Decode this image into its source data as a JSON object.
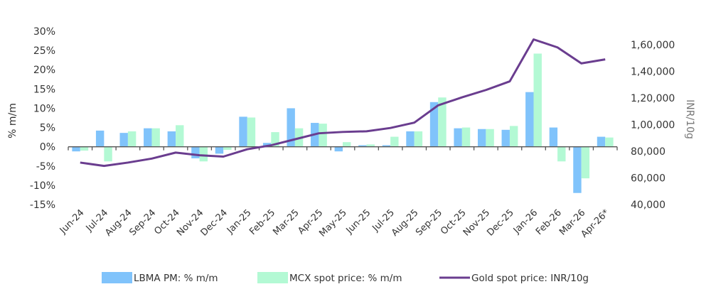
{
  "chart_data": {
    "type": "bar",
    "title": "",
    "categories": [
      "Jun-24",
      "Jul-24",
      "Aug-24",
      "Sep-24",
      "Oct-24",
      "Nov-24",
      "Dec-24",
      "Jan-25",
      "Feb-25",
      "Mar-25",
      "Apr-25",
      "May-25",
      "Jun-25",
      "Jul-25",
      "Aug-25",
      "Sep-25",
      "Oct-25",
      "Nov-25",
      "Dec-25",
      "Jan-26",
      "Feb-26",
      "Mar-26",
      "Apr-26*"
    ],
    "series": [
      {
        "name": "LBMA PM: % m/m",
        "type": "bar",
        "axis": "left",
        "color": "#80c3fb",
        "values": [
          -1.2,
          4.2,
          3.6,
          4.8,
          4.0,
          -3.0,
          -1.8,
          7.8,
          1.0,
          10.0,
          6.2,
          -1.2,
          0.4,
          0.4,
          4.0,
          11.6,
          4.8,
          4.6,
          4.4,
          14.2,
          5.0,
          -12.0,
          2.6
        ]
      },
      {
        "name": "MCX spot price: % m/m",
        "type": "bar",
        "axis": "left",
        "color": "#b3f9d4",
        "values": [
          -1.0,
          -3.8,
          4.0,
          4.8,
          5.6,
          -3.8,
          -0.8,
          7.6,
          3.8,
          4.8,
          6.0,
          1.2,
          0.6,
          2.6,
          4.0,
          12.8,
          5.0,
          4.6,
          5.4,
          24.2,
          -3.8,
          -8.2,
          2.4
        ]
      },
      {
        "name": "Gold spot price: INR/10g",
        "type": "line",
        "axis": "right",
        "color": "#6a3d8f",
        "values": [
          71500,
          69000,
          71500,
          74500,
          79000,
          77000,
          76000,
          81500,
          84500,
          89000,
          93500,
          94500,
          95000,
          97500,
          101500,
          114500,
          120500,
          126000,
          132500,
          164000,
          158000,
          146000,
          149000
        ]
      }
    ],
    "ylabel": "% m/m",
    "ylabel_right": "INR/10g",
    "ylim": [
      -15,
      30
    ],
    "ylim_right": [
      40000,
      160000
    ],
    "yticks": [
      "-15%",
      "-10%",
      "-5%",
      "0%",
      "5%",
      "10%",
      "15%",
      "20%",
      "25%",
      "30%"
    ],
    "yticks_right": [
      "40,000",
      "60,000",
      "80,000",
      "1,00,000",
      "1,20,000",
      "1,40,000",
      "1,60,000"
    ],
    "grid": false,
    "legend": "bottom"
  }
}
